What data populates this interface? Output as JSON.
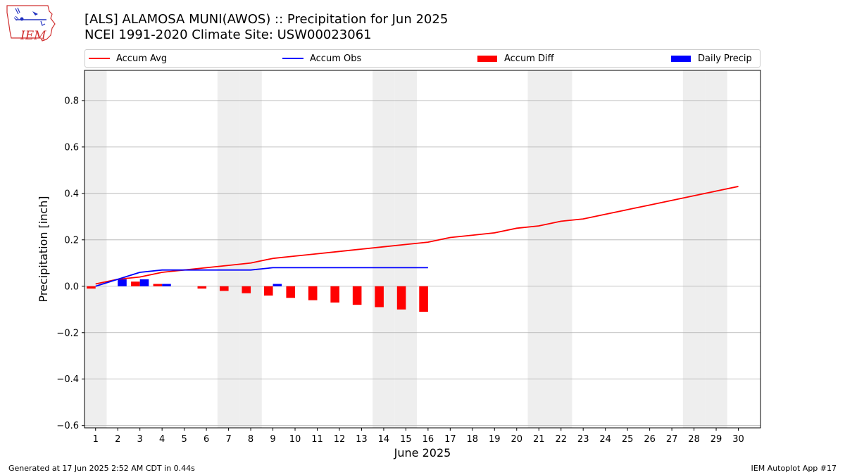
{
  "header": {
    "title_line1": "[ALS] ALAMOSA MUNI(AWOS) :: Precipitation for Jun 2025",
    "title_line2": "NCEI 1991-2020 Climate Site: USW00023061",
    "logo_text": "IEM"
  },
  "footer": {
    "generated": "Generated at 17 Jun 2025 2:52 AM CDT in 0.44s",
    "app": "IEM Autoplot App #17"
  },
  "colors": {
    "accum_avg": "#ff0000",
    "accum_obs": "#0000ff",
    "accum_diff": "#ff0000",
    "daily_precip": "#0000ff",
    "weekend_band": "#eeeeee",
    "grid": "#b0b0b0"
  },
  "chart_data": {
    "type": "bar+line",
    "xlabel": "June 2025",
    "ylabel": "Precipitation [inch]",
    "xlim": [
      0.5,
      31.0
    ],
    "ylim": [
      -0.61,
      0.93
    ],
    "x_ticks": [
      1,
      2,
      3,
      4,
      5,
      6,
      7,
      8,
      9,
      10,
      11,
      12,
      13,
      14,
      15,
      16,
      17,
      18,
      19,
      20,
      21,
      22,
      23,
      24,
      25,
      26,
      27,
      28,
      29,
      30
    ],
    "y_ticks": [
      -0.6,
      -0.4,
      -0.2,
      0.0,
      0.2,
      0.4,
      0.6,
      0.8
    ],
    "y_tick_labels": [
      "−0.6",
      "−0.4",
      "−0.2",
      "0.0",
      "0.2",
      "0.4",
      "0.6",
      "0.8"
    ],
    "grid": "horizontal",
    "weekend_days": [
      1,
      7,
      8,
      14,
      15,
      21,
      22,
      28,
      29
    ],
    "legend": [
      "Accum Avg",
      "Accum Obs",
      "Accum Diff",
      "Daily Precip"
    ],
    "series": [
      {
        "name": "Accum Avg",
        "kind": "line",
        "days": [
          1,
          2,
          3,
          4,
          5,
          6,
          7,
          8,
          9,
          10,
          11,
          12,
          13,
          14,
          15,
          16,
          17,
          18,
          19,
          20,
          21,
          22,
          23,
          24,
          25,
          26,
          27,
          28,
          29,
          30
        ],
        "values": [
          0.01,
          0.03,
          0.04,
          0.06,
          0.07,
          0.08,
          0.09,
          0.1,
          0.12,
          0.13,
          0.14,
          0.15,
          0.16,
          0.17,
          0.18,
          0.19,
          0.21,
          0.22,
          0.23,
          0.25,
          0.26,
          0.28,
          0.29,
          0.31,
          0.33,
          0.35,
          0.37,
          0.39,
          0.41,
          0.43
        ]
      },
      {
        "name": "Accum Obs",
        "kind": "line",
        "days": [
          1,
          2,
          3,
          4,
          5,
          6,
          7,
          8,
          9,
          10,
          11,
          12,
          13,
          14,
          15,
          16
        ],
        "values": [
          0.0,
          0.03,
          0.06,
          0.07,
          0.07,
          0.07,
          0.07,
          0.07,
          0.08,
          0.08,
          0.08,
          0.08,
          0.08,
          0.08,
          0.08,
          0.08
        ]
      },
      {
        "name": "Accum Diff",
        "kind": "bar",
        "days": [
          1,
          2,
          3,
          4,
          5,
          6,
          7,
          8,
          9,
          10,
          11,
          12,
          13,
          14,
          15,
          16
        ],
        "values": [
          -0.01,
          0.0,
          0.02,
          0.01,
          0.0,
          -0.01,
          -0.02,
          -0.03,
          -0.04,
          -0.05,
          -0.06,
          -0.07,
          -0.08,
          -0.09,
          -0.1,
          -0.11
        ]
      },
      {
        "name": "Daily Precip",
        "kind": "bar",
        "days": [
          1,
          2,
          3,
          4,
          5,
          6,
          7,
          8,
          9,
          10,
          11,
          12,
          13,
          14,
          15,
          16
        ],
        "values": [
          0.0,
          0.03,
          0.03,
          0.01,
          0.0,
          0.0,
          0.0,
          0.0,
          0.01,
          0.0,
          0.0,
          0.0,
          0.0,
          0.0,
          0.0,
          0.0
        ]
      }
    ]
  }
}
